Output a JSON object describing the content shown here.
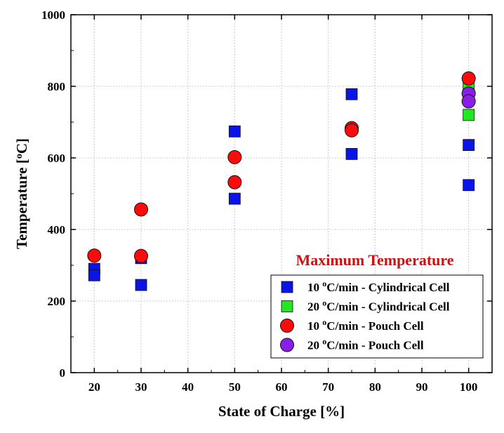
{
  "chart_data": {
    "type": "scatter",
    "title": "Maximum Temperature",
    "xlabel": "State of Charge [%]",
    "ylabel_main": "Temperature [",
    "ylabel_sup": "o",
    "ylabel_end": "C]",
    "xlim": [
      15,
      105
    ],
    "ylim": [
      0,
      1000
    ],
    "x_ticks": [
      "20",
      "30",
      "40",
      "50",
      "60",
      "70",
      "80",
      "90",
      "100"
    ],
    "y_ticks": [
      "0",
      "200",
      "400",
      "600",
      "800",
      "1000"
    ],
    "grid": true,
    "legend_position": "bottom-right",
    "series": [
      {
        "name_prefix": "10 ",
        "name_sup": "o",
        "name_suffix": "C/min - Cylindrical Cell",
        "marker": "square",
        "color": "#0a14e6",
        "points": [
          [
            20,
            290
          ],
          [
            20,
            272
          ],
          [
            30,
            320
          ],
          [
            30,
            245
          ],
          [
            50,
            674
          ],
          [
            50,
            486
          ],
          [
            75,
            778
          ],
          [
            75,
            611
          ],
          [
            100,
            636
          ],
          [
            100,
            524
          ]
        ]
      },
      {
        "name_prefix": "20 ",
        "name_sup": "o",
        "name_suffix": "C/min - Cylindrical Cell",
        "marker": "square",
        "color": "#22e622",
        "points": [
          [
            100,
            805
          ],
          [
            100,
            720
          ]
        ]
      },
      {
        "name_prefix": "10 ",
        "name_sup": "o",
        "name_suffix": "C/min - Pouch Cell",
        "marker": "circle",
        "color": "#ff0a0a",
        "points": [
          [
            20,
            327
          ],
          [
            30,
            456
          ],
          [
            30,
            326
          ],
          [
            50,
            602
          ],
          [
            50,
            532
          ],
          [
            75,
            683
          ],
          [
            75,
            677
          ],
          [
            100,
            822
          ]
        ]
      },
      {
        "name_prefix": "20 ",
        "name_sup": "o",
        "name_suffix": "C/min - Pouch Cell",
        "marker": "circle",
        "color": "#8a1ee8",
        "points": [
          [
            100,
            780
          ],
          [
            100,
            758
          ]
        ]
      }
    ]
  },
  "colors": {
    "title": "#cc1111",
    "grid": "#bbbbbb",
    "axis": "#000000"
  }
}
